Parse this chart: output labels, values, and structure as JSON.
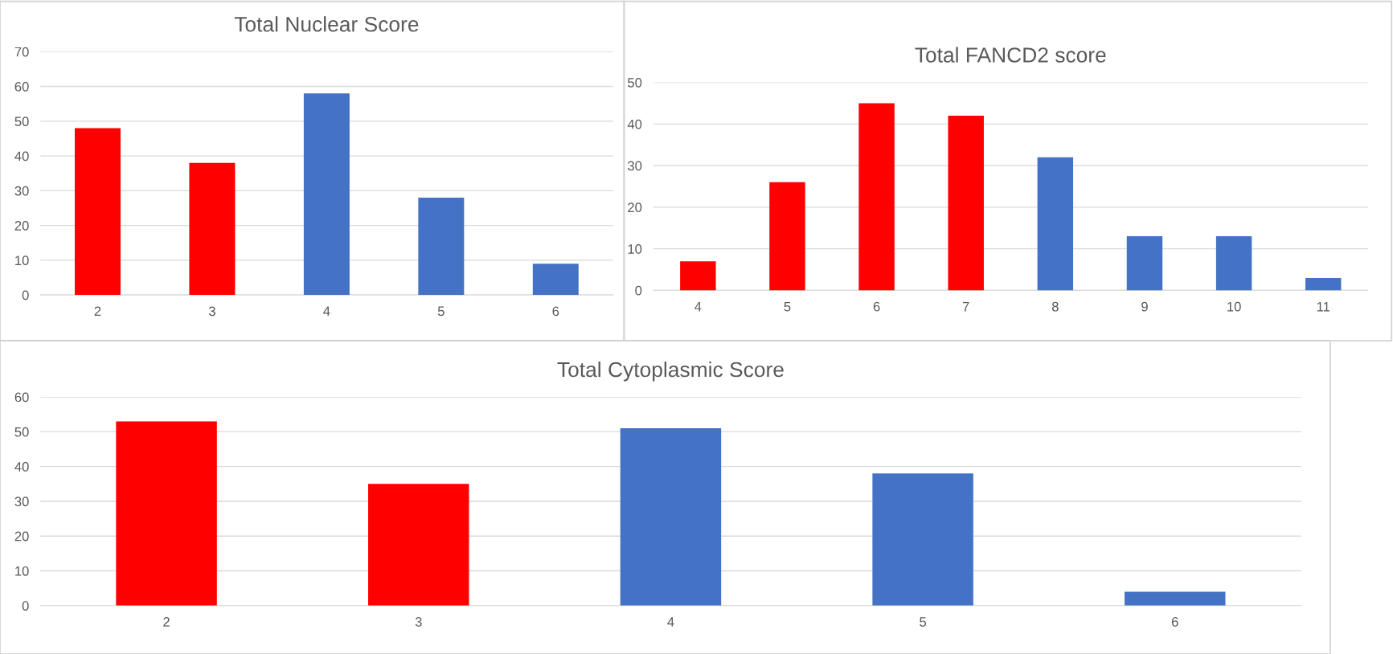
{
  "chart_data": [
    {
      "type": "bar",
      "title": "Total Nuclear Score",
      "categories": [
        "2",
        "3",
        "4",
        "5",
        "6"
      ],
      "values": [
        48,
        38,
        58,
        28,
        9
      ],
      "colors": [
        "#ff0000",
        "#ff0000",
        "#4472c4",
        "#4472c4",
        "#4472c4"
      ],
      "ylim": [
        0,
        70
      ],
      "yticks": [
        0,
        10,
        20,
        30,
        40,
        50,
        60,
        70
      ],
      "grid": "y"
    },
    {
      "type": "bar",
      "title": "Total FANCD2 score",
      "categories": [
        "4",
        "5",
        "6",
        "7",
        "8",
        "9",
        "10",
        "11"
      ],
      "values": [
        7,
        26,
        45,
        42,
        32,
        13,
        13,
        3
      ],
      "colors": [
        "#ff0000",
        "#ff0000",
        "#ff0000",
        "#ff0000",
        "#4472c4",
        "#4472c4",
        "#4472c4",
        "#4472c4"
      ],
      "ylim": [
        0,
        50
      ],
      "yticks": [
        0,
        10,
        20,
        30,
        40,
        50
      ],
      "grid": "y"
    },
    {
      "type": "bar",
      "title": "Total Cytoplasmic Score",
      "categories": [
        "2",
        "3",
        "4",
        "5",
        "6"
      ],
      "values": [
        53,
        35,
        51,
        38,
        4
      ],
      "colors": [
        "#ff0000",
        "#ff0000",
        "#4472c4",
        "#4472c4",
        "#4472c4"
      ],
      "ylim": [
        0,
        60
      ],
      "yticks": [
        0,
        10,
        20,
        30,
        40,
        50,
        60
      ],
      "grid": "y"
    }
  ]
}
